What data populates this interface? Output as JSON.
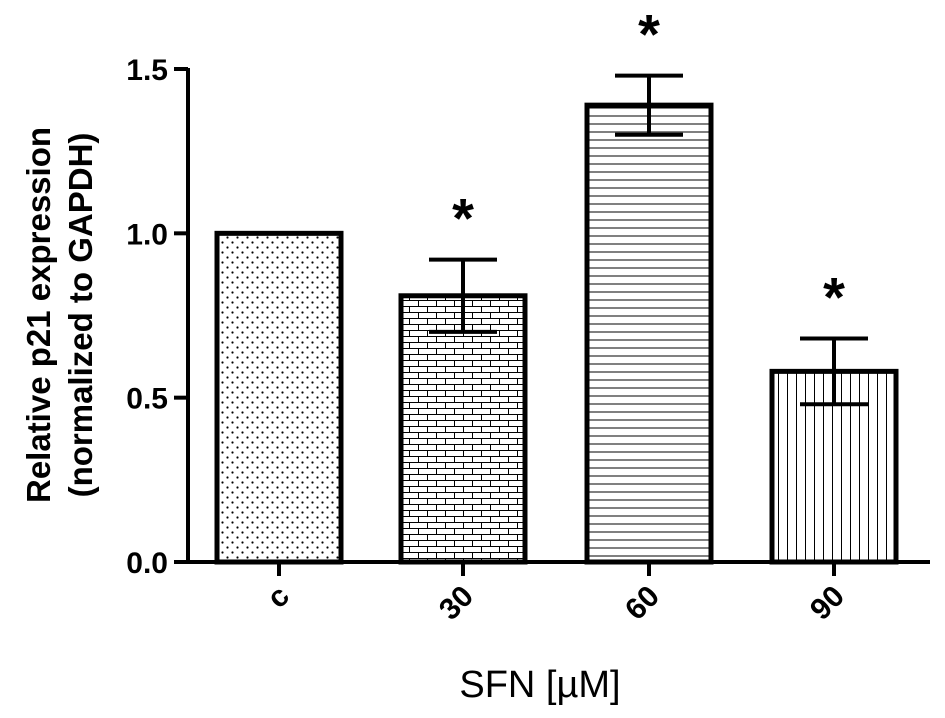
{
  "chart_data": {
    "type": "bar",
    "title": "",
    "ylabel_line1": "Relative p21 expression",
    "ylabel_line2": "(normalized to GAPDH)",
    "xlabel": "SFN [µM]",
    "categories": [
      "c",
      "30",
      "60",
      "90"
    ],
    "values": [
      1.0,
      0.81,
      1.39,
      0.58
    ],
    "errors": [
      0,
      0.11,
      0.09,
      0.1
    ],
    "significance": [
      "",
      "*",
      "*",
      "*"
    ],
    "patterns": [
      "dots",
      "bricks",
      "horizontal-lines",
      "vertical-lines"
    ],
    "ylim": [
      0,
      1.5
    ],
    "yticks": [
      "0.0",
      "0.5",
      "1.0",
      "1.5"
    ],
    "grid": false,
    "color": "#000000"
  }
}
